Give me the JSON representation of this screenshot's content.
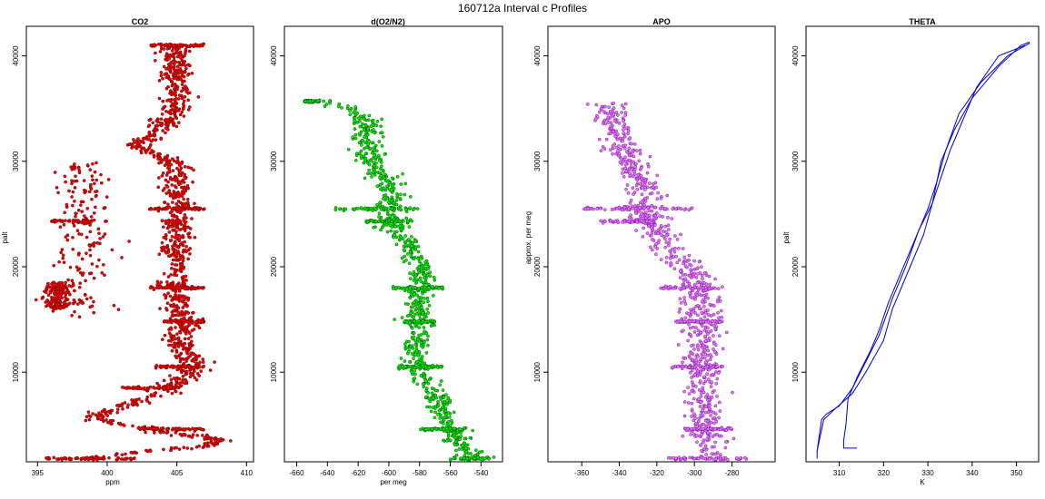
{
  "figure": {
    "title": "160712a   Interval c Profiles"
  },
  "chart_data": [
    {
      "type": "scatter",
      "title": "CO2",
      "xlabel": "ppm",
      "ylabel": "palt",
      "xlim": [
        394.2,
        410.5
      ],
      "ylim": [
        1500,
        42800
      ],
      "xticks": [
        395,
        400,
        405,
        410
      ],
      "yticks": [
        10000,
        20000,
        30000,
        40000
      ],
      "color": "#ee0000",
      "edge": "#660000",
      "spread": 0.55,
      "profile": [
        [
          1800,
          398
        ],
        [
          2200,
          401
        ],
        [
          3000,
          407
        ],
        [
          3600,
          408
        ],
        [
          4300,
          404
        ],
        [
          4800,
          403
        ],
        [
          5200,
          400
        ],
        [
          6000,
          399
        ],
        [
          7000,
          402
        ],
        [
          8000,
          404
        ],
        [
          9000,
          405
        ],
        [
          10000,
          406
        ],
        [
          11500,
          406
        ],
        [
          13000,
          405
        ],
        [
          14500,
          406
        ],
        [
          16000,
          405
        ],
        [
          17500,
          405
        ],
        [
          19000,
          405
        ],
        [
          20500,
          405
        ],
        [
          22000,
          405
        ],
        [
          23500,
          405
        ],
        [
          25000,
          405
        ],
        [
          26500,
          405
        ],
        [
          28000,
          405
        ],
        [
          29500,
          405
        ],
        [
          30500,
          404
        ],
        [
          31500,
          402
        ],
        [
          32500,
          403
        ],
        [
          33500,
          404
        ],
        [
          35000,
          405
        ],
        [
          37000,
          405
        ],
        [
          39000,
          405
        ],
        [
          41000,
          405
        ]
      ],
      "branches": [
        {
          "y": [
            15000,
            30000
          ],
          "x": 398.2,
          "s": 0.9
        },
        {
          "y": [
            16000,
            18500
          ],
          "x": 396.5,
          "s": 0.5
        }
      ],
      "lines": [
        {
          "y": 1800,
          "x0": 395.5,
          "x1": 402
        },
        {
          "y": 24300,
          "x0": 396,
          "x1": 400
        },
        {
          "y": 41000,
          "x0": 403,
          "x1": 407
        },
        {
          "y": 25500,
          "x0": 403,
          "x1": 407
        },
        {
          "y": 18000,
          "x0": 403,
          "x1": 407
        },
        {
          "y": 14800,
          "x0": 404,
          "x1": 407
        },
        {
          "y": 10500,
          "x0": 403.5,
          "x1": 407
        },
        {
          "y": 8500,
          "x0": 401,
          "x1": 405
        },
        {
          "y": 4600,
          "x0": 402,
          "x1": 407
        }
      ],
      "n": 1700,
      "seed": 11
    },
    {
      "type": "scatter",
      "title": "d(O2/N2)",
      "xlabel": "per meg",
      "ylabel": "",
      "xlim": [
        -668,
        -526
      ],
      "ylim": [
        1500,
        42800
      ],
      "xticks": [
        -660,
        -640,
        -620,
        -600,
        -580,
        -560,
        -540
      ],
      "yticks": [
        10000,
        20000,
        30000,
        40000
      ],
      "color": "#00ee00",
      "edge": "#004400",
      "spread": 4.5,
      "profile": [
        [
          1800,
          -545
        ],
        [
          2500,
          -548
        ],
        [
          3500,
          -555
        ],
        [
          5000,
          -560
        ],
        [
          6500,
          -565
        ],
        [
          8000,
          -570
        ],
        [
          9500,
          -578
        ],
        [
          11000,
          -582
        ],
        [
          13000,
          -583
        ],
        [
          15000,
          -580
        ],
        [
          17000,
          -582
        ],
        [
          19000,
          -578
        ],
        [
          21000,
          -582
        ],
        [
          22500,
          -590
        ],
        [
          24000,
          -598
        ],
        [
          25500,
          -600
        ],
        [
          27000,
          -595
        ],
        [
          28500,
          -605
        ],
        [
          30000,
          -612
        ],
        [
          32000,
          -615
        ],
        [
          33500,
          -612
        ],
        [
          35000,
          -625
        ],
        [
          35800,
          -650
        ]
      ],
      "branches": [],
      "lines": [
        {
          "y": 1800,
          "x0": -560,
          "x1": -530
        },
        {
          "y": 25500,
          "x0": -635,
          "x1": -580
        },
        {
          "y": 24300,
          "x0": -615,
          "x1": -585
        },
        {
          "y": 18000,
          "x0": -598,
          "x1": -565
        },
        {
          "y": 14800,
          "x0": -590,
          "x1": -570
        },
        {
          "y": 10500,
          "x0": -595,
          "x1": -565
        },
        {
          "y": 4600,
          "x0": -580,
          "x1": -550
        },
        {
          "y": 35700,
          "x0": -655,
          "x1": -645
        }
      ],
      "n": 1200,
      "seed": 23
    },
    {
      "type": "scatter",
      "title": "APO",
      "xlabel": "",
      "ylabel": "approx. per meg",
      "xlim": [
        -378,
        -257
      ],
      "ylim": [
        1500,
        42800
      ],
      "xticks": [
        -360,
        -340,
        -320,
        -300,
        -280
      ],
      "yticks": [
        10000,
        20000,
        30000,
        40000
      ],
      "color": "#e07af0",
      "edge": "#7a00aa",
      "spread": 5,
      "profile": [
        [
          1800,
          -293
        ],
        [
          5000,
          -295
        ],
        [
          9000,
          -295
        ],
        [
          12000,
          -296
        ],
        [
          15000,
          -296
        ],
        [
          18000,
          -297
        ],
        [
          20000,
          -305
        ],
        [
          22000,
          -315
        ],
        [
          24000,
          -322
        ],
        [
          25500,
          -330
        ],
        [
          27000,
          -325
        ],
        [
          28500,
          -330
        ],
        [
          30000,
          -335
        ],
        [
          32000,
          -340
        ],
        [
          34000,
          -345
        ],
        [
          35500,
          -345
        ]
      ],
      "branches": [],
      "lines": [
        {
          "y": 1800,
          "x0": -315,
          "x1": -272
        },
        {
          "y": 25500,
          "x0": -360,
          "x1": -300
        },
        {
          "y": 24300,
          "x0": -350,
          "x1": -320
        },
        {
          "y": 18000,
          "x0": -318,
          "x1": -285
        },
        {
          "y": 14800,
          "x0": -310,
          "x1": -285
        },
        {
          "y": 10500,
          "x0": -312,
          "x1": -285
        },
        {
          "y": 4600,
          "x0": -305,
          "x1": -280
        }
      ],
      "n": 1200,
      "seed": 37
    },
    {
      "type": "line",
      "title": "THETA",
      "xlabel": "K",
      "ylabel": "palt",
      "xlim": [
        302.5,
        355
      ],
      "ylim": [
        1500,
        42800
      ],
      "xticks": [
        310,
        320,
        330,
        340,
        350
      ],
      "yticks": [
        10000,
        20000,
        30000,
        40000
      ],
      "color": "#0000dd",
      "series": [
        {
          "points": [
            [
              305,
              1800
            ],
            [
              305,
              2500
            ],
            [
              305.5,
              3500
            ],
            [
              306,
              4500
            ],
            [
              306.5,
              5500
            ],
            [
              309,
              6500
            ],
            [
              313,
              8000
            ],
            [
              316,
              10000
            ],
            [
              320,
              13000
            ],
            [
              322,
              16000
            ],
            [
              326,
              20000
            ],
            [
              329,
              23000
            ],
            [
              331,
              26000
            ],
            [
              333,
              30000
            ],
            [
              336,
              33000
            ],
            [
              340,
              36000
            ],
            [
              346,
              39000
            ],
            [
              351,
              41000
            ],
            [
              353,
              41300
            ]
          ]
        },
        {
          "points": [
            [
              353,
              41200
            ],
            [
              348,
              40000
            ],
            [
              342,
              37500
            ],
            [
              337,
              34500
            ],
            [
              334,
              31000
            ],
            [
              332,
              28000
            ],
            [
              330,
              25500
            ],
            [
              327,
              22500
            ],
            [
              324,
              19500
            ],
            [
              321,
              16500
            ],
            [
              319,
              14000
            ],
            [
              317,
              12000
            ],
            [
              314,
              9500
            ],
            [
              312,
              7500
            ],
            [
              311.5,
              5000
            ],
            [
              311,
              3500
            ],
            [
              311,
              2800
            ],
            [
              314,
              2800
            ]
          ]
        },
        {
          "points": [
            [
              352,
              41000
            ],
            [
              346,
              40000
            ],
            [
              341,
              37000
            ],
            [
              338,
              34000
            ],
            [
              335,
              31000
            ],
            [
              333,
              28500
            ],
            [
              331,
              26000
            ],
            [
              328,
              23500
            ],
            [
              325,
              20000
            ],
            [
              322,
              17000
            ],
            [
              319,
              13500
            ],
            [
              316,
              11000
            ],
            [
              313,
              8500
            ],
            [
              310,
              6800
            ],
            [
              307,
              6000
            ],
            [
              306,
              5500
            ],
            [
              305.5,
              4000
            ],
            [
              305,
              2500
            ]
          ]
        }
      ]
    }
  ]
}
